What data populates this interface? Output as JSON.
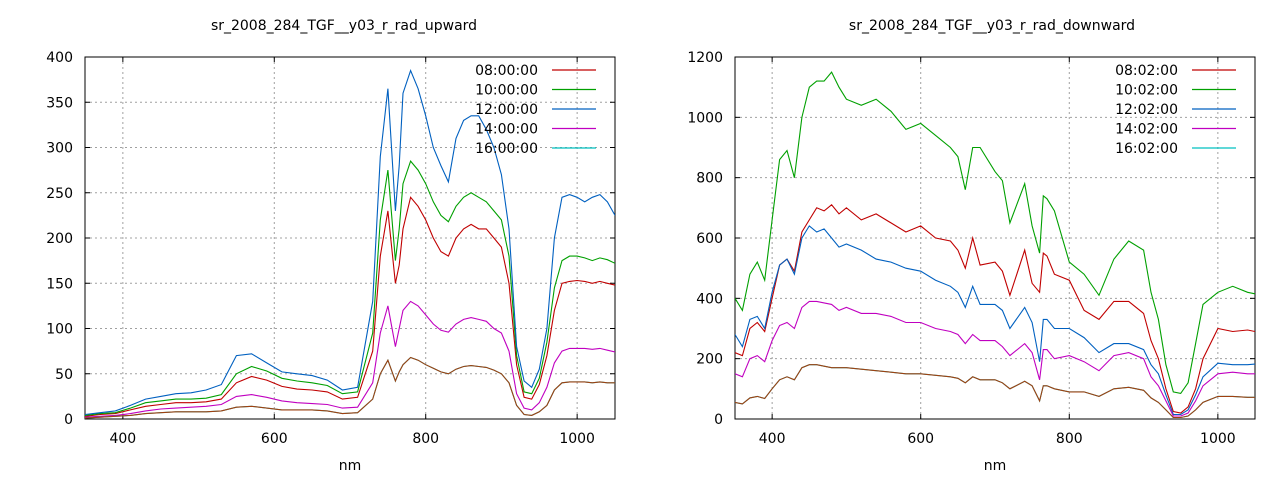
{
  "chart_data": [
    {
      "type": "line",
      "title": "sr_2008_284_TGF__y03_r_rad_upward",
      "xlabel": "nm",
      "ylabel": "",
      "xlim": [
        350,
        1050
      ],
      "ylim": [
        0,
        400
      ],
      "xticks": [
        400,
        600,
        800,
        1000
      ],
      "yticks": [
        0,
        50,
        100,
        150,
        200,
        250,
        300,
        350,
        400
      ],
      "grid": true,
      "legend_position": "top-right",
      "x": [
        350,
        370,
        390,
        410,
        430,
        450,
        470,
        490,
        510,
        530,
        550,
        570,
        590,
        610,
        630,
        650,
        670,
        690,
        710,
        730,
        740,
        750,
        760,
        765,
        770,
        780,
        790,
        800,
        810,
        820,
        830,
        840,
        850,
        860,
        870,
        880,
        890,
        900,
        910,
        920,
        930,
        940,
        950,
        960,
        970,
        980,
        990,
        1000,
        1010,
        1020,
        1030,
        1040,
        1050
      ],
      "series": [
        {
          "name": "08:00:00",
          "color": "#c00000",
          "values": [
            3,
            5,
            6,
            10,
            14,
            16,
            18,
            18,
            19,
            22,
            40,
            47,
            43,
            36,
            33,
            32,
            30,
            22,
            24,
            75,
            180,
            230,
            150,
            170,
            210,
            245,
            235,
            220,
            200,
            185,
            180,
            200,
            210,
            215,
            210,
            210,
            200,
            190,
            150,
            60,
            24,
            22,
            38,
            70,
            120,
            150,
            152,
            153,
            152,
            150,
            152,
            150,
            148
          ]
        },
        {
          "name": "10:00:00",
          "color": "#00a000",
          "values": [
            4,
            6,
            7,
            12,
            18,
            20,
            22,
            22,
            23,
            27,
            50,
            58,
            53,
            45,
            42,
            40,
            37,
            28,
            30,
            95,
            220,
            275,
            175,
            210,
            260,
            285,
            275,
            260,
            240,
            225,
            218,
            235,
            245,
            250,
            245,
            240,
            230,
            220,
            180,
            70,
            30,
            28,
            45,
            85,
            145,
            175,
            180,
            180,
            178,
            175,
            178,
            176,
            172
          ]
        },
        {
          "name": "12:00:00",
          "color": "#0060c0",
          "values": [
            5,
            7,
            9,
            15,
            22,
            25,
            28,
            29,
            32,
            38,
            70,
            72,
            62,
            52,
            50,
            48,
            43,
            32,
            35,
            130,
            290,
            365,
            230,
            280,
            360,
            385,
            365,
            335,
            300,
            280,
            262,
            310,
            330,
            335,
            335,
            320,
            300,
            270,
            210,
            80,
            42,
            35,
            55,
            100,
            200,
            245,
            248,
            245,
            240,
            245,
            248,
            240,
            225
          ]
        },
        {
          "name": "14:00:00",
          "color": "#c000c0",
          "values": [
            2,
            3,
            4,
            6,
            9,
            11,
            12,
            13,
            14,
            16,
            25,
            27,
            24,
            20,
            18,
            17,
            16,
            12,
            13,
            40,
            95,
            125,
            80,
            100,
            120,
            130,
            125,
            115,
            105,
            98,
            96,
            105,
            110,
            112,
            110,
            108,
            100,
            95,
            75,
            28,
            12,
            10,
            18,
            35,
            62,
            75,
            78,
            78,
            78,
            77,
            78,
            76,
            74
          ]
        },
        {
          "name": "16:00:00",
          "color": "#00c0c0",
          "values": [
            1,
            2,
            3,
            4,
            6,
            7,
            8,
            8,
            8,
            9,
            13,
            14,
            12,
            10,
            10,
            10,
            9,
            6,
            7,
            22,
            50,
            65,
            42,
            52,
            60,
            68,
            65,
            60,
            56,
            52,
            50,
            55,
            58,
            59,
            58,
            57,
            54,
            50,
            40,
            15,
            5,
            4,
            8,
            15,
            32,
            40,
            41,
            41,
            41,
            40,
            41,
            40,
            40
          ]
        },
        {
          "name": "",
          "color": "#a04010",
          "values": [
            1,
            2,
            3,
            4,
            6,
            7,
            8,
            8,
            8,
            9,
            13,
            14,
            12,
            10,
            10,
            10,
            9,
            6,
            7,
            22,
            50,
            65,
            42,
            52,
            60,
            68,
            65,
            60,
            56,
            52,
            50,
            55,
            58,
            59,
            58,
            57,
            54,
            50,
            40,
            15,
            5,
            4,
            8,
            15,
            32,
            40,
            41,
            41,
            41,
            40,
            41,
            40,
            40
          ]
        }
      ]
    },
    {
      "type": "line",
      "title": "sr_2008_284_TGF__y03_r_rad_downward",
      "xlabel": "nm",
      "ylabel": "",
      "xlim": [
        350,
        1050
      ],
      "ylim": [
        0,
        1200
      ],
      "xticks": [
        400,
        600,
        800,
        1000
      ],
      "yticks": [
        0,
        200,
        400,
        600,
        800,
        1000,
        1200
      ],
      "grid": true,
      "legend_position": "top-right",
      "x": [
        350,
        360,
        370,
        380,
        390,
        400,
        410,
        420,
        430,
        440,
        450,
        460,
        470,
        480,
        490,
        500,
        520,
        540,
        560,
        580,
        600,
        620,
        640,
        650,
        660,
        670,
        680,
        700,
        710,
        720,
        740,
        750,
        760,
        765,
        770,
        780,
        800,
        820,
        840,
        860,
        880,
        900,
        910,
        920,
        930,
        940,
        950,
        960,
        970,
        980,
        1000,
        1020,
        1040,
        1050
      ],
      "series": [
        {
          "name": "08:02:00",
          "color": "#c00000",
          "values": [
            220,
            210,
            300,
            320,
            290,
            400,
            510,
            530,
            490,
            620,
            660,
            700,
            690,
            710,
            680,
            700,
            660,
            680,
            650,
            620,
            640,
            600,
            590,
            560,
            500,
            600,
            510,
            520,
            490,
            410,
            560,
            450,
            420,
            550,
            540,
            480,
            460,
            360,
            330,
            390,
            390,
            350,
            260,
            200,
            100,
            25,
            20,
            40,
            100,
            200,
            300,
            290,
            295,
            290
          ]
        },
        {
          "name": "10:02:00",
          "color": "#00a000",
          "values": [
            400,
            360,
            480,
            520,
            460,
            660,
            860,
            890,
            800,
            1000,
            1100,
            1120,
            1120,
            1150,
            1100,
            1060,
            1040,
            1060,
            1020,
            960,
            980,
            940,
            900,
            870,
            760,
            900,
            900,
            820,
            790,
            650,
            780,
            640,
            550,
            740,
            730,
            690,
            520,
            480,
            410,
            530,
            590,
            560,
            420,
            330,
            180,
            90,
            85,
            120,
            250,
            380,
            420,
            440,
            420,
            415
          ]
        },
        {
          "name": "12:02:00",
          "color": "#0060c0",
          "values": [
            280,
            240,
            330,
            340,
            300,
            420,
            510,
            530,
            480,
            600,
            640,
            620,
            630,
            600,
            570,
            580,
            560,
            530,
            520,
            500,
            490,
            460,
            440,
            420,
            370,
            440,
            380,
            380,
            360,
            300,
            370,
            320,
            190,
            330,
            330,
            300,
            300,
            270,
            220,
            250,
            250,
            230,
            180,
            150,
            80,
            15,
            15,
            30,
            80,
            140,
            185,
            180,
            180,
            182
          ]
        },
        {
          "name": "14:02:00",
          "color": "#c000c0",
          "values": [
            150,
            140,
            200,
            210,
            190,
            260,
            310,
            320,
            300,
            370,
            390,
            390,
            385,
            380,
            360,
            370,
            350,
            350,
            340,
            320,
            320,
            300,
            290,
            280,
            250,
            280,
            260,
            260,
            240,
            210,
            250,
            220,
            130,
            230,
            230,
            200,
            210,
            190,
            160,
            210,
            220,
            200,
            140,
            110,
            60,
            10,
            10,
            20,
            60,
            110,
            150,
            155,
            150,
            150
          ]
        },
        {
          "name": "16:02:00",
          "color": "#00c0c0",
          "values": [
            55,
            50,
            70,
            75,
            68,
            100,
            130,
            140,
            130,
            170,
            180,
            180,
            175,
            170,
            170,
            170,
            165,
            160,
            155,
            150,
            150,
            145,
            140,
            135,
            120,
            140,
            130,
            130,
            120,
            100,
            125,
            110,
            60,
            110,
            110,
            100,
            90,
            90,
            75,
            100,
            105,
            95,
            70,
            55,
            30,
            5,
            5,
            10,
            30,
            55,
            75,
            75,
            72,
            72
          ]
        },
        {
          "name": "",
          "color": "#a04010",
          "values": [
            55,
            50,
            70,
            75,
            68,
            100,
            130,
            140,
            130,
            170,
            180,
            180,
            175,
            170,
            170,
            170,
            165,
            160,
            155,
            150,
            150,
            145,
            140,
            135,
            120,
            140,
            130,
            130,
            120,
            100,
            125,
            110,
            60,
            110,
            110,
            100,
            90,
            90,
            75,
            100,
            105,
            95,
            70,
            55,
            30,
            5,
            5,
            10,
            30,
            55,
            75,
            75,
            72,
            72
          ]
        }
      ]
    }
  ]
}
